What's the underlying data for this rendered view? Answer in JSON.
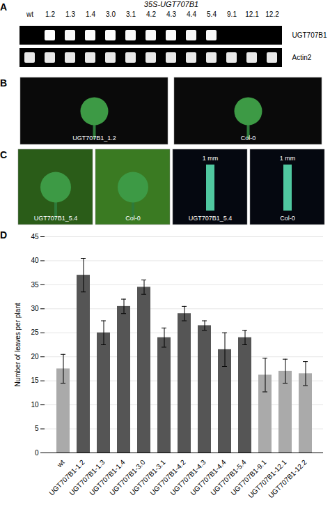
{
  "chart_data": [
    {
      "type": "gel",
      "panel": "A",
      "title": "35S-UGT707B1",
      "categories": [
        "wt",
        "1.2",
        "1.3",
        "1.4",
        "3.0",
        "3.1",
        "4.2",
        "4.3",
        "4.4",
        "5.4",
        "9.1",
        "12.1",
        "12.2"
      ],
      "series": [
        {
          "name": "UGT707B1",
          "values": [
            null,
            1.0,
            0.9,
            0.95,
            0.95,
            0.9,
            0.9,
            0.95,
            0.85,
            0.9,
            null,
            null,
            null
          ]
        },
        {
          "name": "Actin2",
          "values": [
            true,
            true,
            true,
            true,
            true,
            true,
            true,
            true,
            true,
            true,
            true,
            true,
            true
          ]
        }
      ]
    },
    {
      "type": "image",
      "panel": "B",
      "categories": [
        "UGT707B1_1.2",
        "Col-0"
      ],
      "colors": [
        "#0a0a0a",
        "#0a0a0a"
      ]
    },
    {
      "type": "image",
      "panel": "C",
      "categories": [
        "UGT707B1_5.4",
        "Col-0",
        "UGT707B1_5.4",
        "Col-0"
      ],
      "colors": [
        "#2a5c18",
        "#3a7a22",
        "#050810",
        "#050810"
      ],
      "annotations": [
        null,
        null,
        "1 mm",
        "1 mm"
      ]
    },
    {
      "type": "bar",
      "panel": "D",
      "categories": [
        "wt",
        "UGT707B1-1.2",
        "UGT707B1-1.3",
        "UGT707B1-1.4",
        "UGT707B1-3.0",
        "UGT707B1-3.1",
        "UGT707B1-4.2",
        "UGT707B1-4.3",
        "UGT707B1-4.4",
        "UGT707B1-5.4",
        "UGT707B1-9.1",
        "UGT707B1-12.1",
        "UGT707B1-12.2"
      ],
      "values": [
        17.5,
        37.0,
        25.0,
        30.5,
        34.5,
        24.0,
        29.0,
        26.5,
        21.5,
        24.0,
        16.2,
        17.0,
        16.5
      ],
      "errors": [
        3.0,
        3.5,
        2.5,
        1.5,
        1.5,
        2.0,
        1.5,
        1.0,
        3.5,
        1.5,
        3.5,
        2.5,
        2.5
      ],
      "colors": [
        "#aaaaaa",
        "#555555",
        "#555555",
        "#555555",
        "#555555",
        "#555555",
        "#555555",
        "#555555",
        "#555555",
        "#555555",
        "#aaaaaa",
        "#aaaaaa",
        "#aaaaaa"
      ],
      "ylabel": "Number of leaves per plant",
      "ylim": [
        0,
        45
      ],
      "yticks": [
        0,
        5,
        10,
        15,
        20,
        25,
        30,
        35,
        40,
        45
      ],
      "grid": true
    }
  ]
}
